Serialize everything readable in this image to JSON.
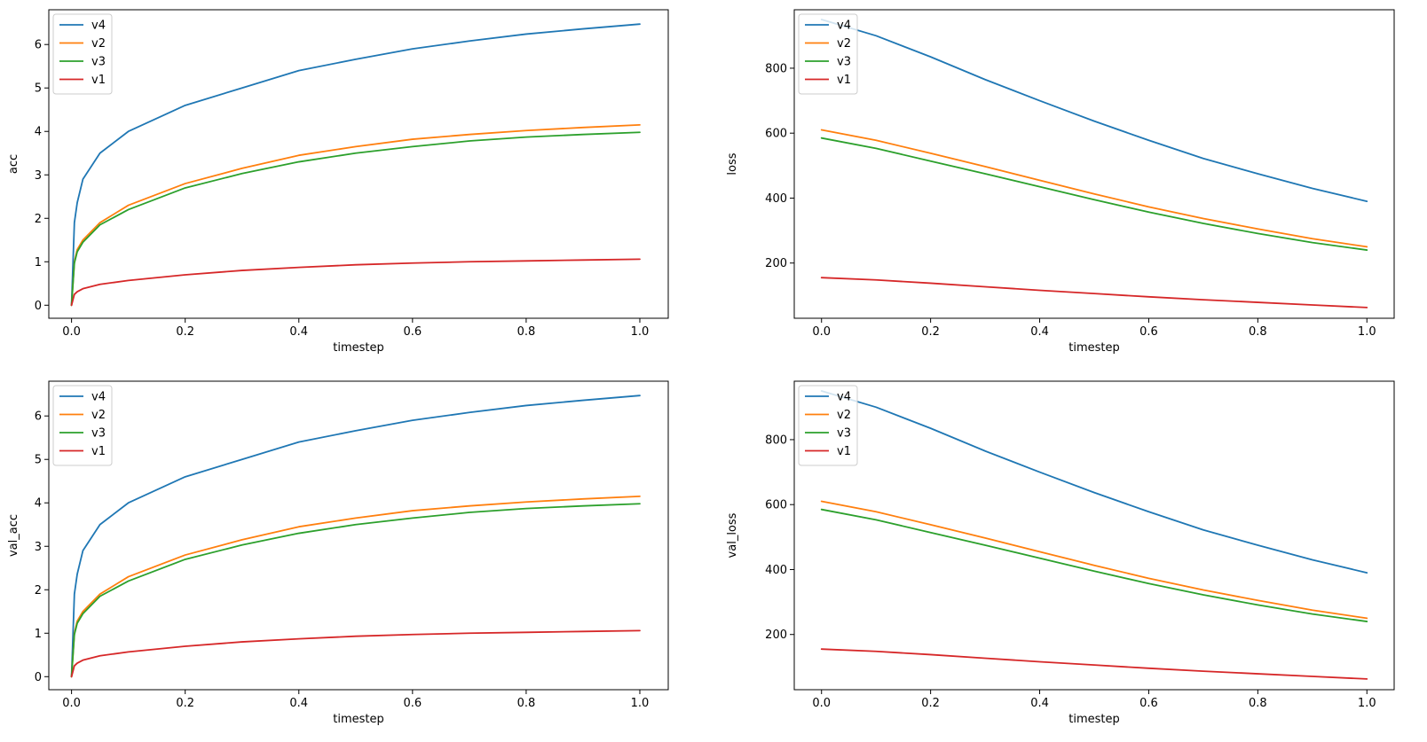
{
  "figure": {
    "background": "#ffffff"
  },
  "colors": {
    "v4": "#1f77b4",
    "v2": "#ff7f0e",
    "v3": "#2ca02c",
    "v1": "#d62728"
  },
  "chart_data": [
    {
      "type": "line",
      "title": "",
      "xlabel": "timestep",
      "ylabel": "acc",
      "xlim": [
        -0.04,
        1.05
      ],
      "ylim": [
        -0.3,
        6.8
      ],
      "xticks": [
        0.0,
        0.2,
        0.4,
        0.6,
        0.8,
        1.0
      ],
      "xtick_labels": [
        "0.0",
        "0.2",
        "0.4",
        "0.6",
        "0.8",
        "1.0"
      ],
      "yticks": [
        0,
        1,
        2,
        3,
        4,
        5,
        6
      ],
      "ytick_labels": [
        "0",
        "1",
        "2",
        "3",
        "4",
        "5",
        "6"
      ],
      "grid": false,
      "legend_position": "upper-left",
      "series": [
        {
          "name": "v4",
          "x": [
            0.0,
            0.005,
            0.01,
            0.02,
            0.05,
            0.1,
            0.2,
            0.3,
            0.4,
            0.5,
            0.6,
            0.7,
            0.8,
            0.9,
            1.0
          ],
          "y": [
            0.0,
            1.9,
            2.36,
            2.9,
            3.5,
            4.0,
            4.6,
            5.0,
            5.4,
            5.66,
            5.9,
            6.08,
            6.24,
            6.36,
            6.47
          ]
        },
        {
          "name": "v2",
          "x": [
            0.0,
            0.005,
            0.01,
            0.02,
            0.05,
            0.1,
            0.2,
            0.3,
            0.4,
            0.5,
            0.6,
            0.7,
            0.8,
            0.9,
            1.0
          ],
          "y": [
            0.0,
            1.0,
            1.28,
            1.5,
            1.9,
            2.3,
            2.8,
            3.15,
            3.45,
            3.65,
            3.82,
            3.93,
            4.02,
            4.09,
            4.15
          ]
        },
        {
          "name": "v3",
          "x": [
            0.0,
            0.005,
            0.01,
            0.02,
            0.05,
            0.1,
            0.2,
            0.3,
            0.4,
            0.5,
            0.6,
            0.7,
            0.8,
            0.9,
            1.0
          ],
          "y": [
            0.0,
            0.97,
            1.23,
            1.45,
            1.85,
            2.2,
            2.7,
            3.03,
            3.3,
            3.5,
            3.65,
            3.78,
            3.87,
            3.93,
            3.98
          ]
        },
        {
          "name": "v1",
          "x": [
            0.0,
            0.005,
            0.01,
            0.02,
            0.05,
            0.1,
            0.2,
            0.3,
            0.4,
            0.5,
            0.6,
            0.7,
            0.8,
            0.9,
            1.0
          ],
          "y": [
            0.0,
            0.25,
            0.31,
            0.38,
            0.48,
            0.57,
            0.7,
            0.8,
            0.87,
            0.93,
            0.97,
            1.0,
            1.02,
            1.04,
            1.06
          ]
        }
      ]
    },
    {
      "type": "line",
      "title": "",
      "xlabel": "timestep",
      "ylabel": "loss",
      "xlim": [
        -0.05,
        1.05
      ],
      "ylim": [
        30,
        980
      ],
      "xticks": [
        0.0,
        0.2,
        0.4,
        0.6,
        0.8,
        1.0
      ],
      "xtick_labels": [
        "0.0",
        "0.2",
        "0.4",
        "0.6",
        "0.8",
        "1.0"
      ],
      "yticks": [
        200,
        400,
        600,
        800
      ],
      "ytick_labels": [
        "200",
        "400",
        "600",
        "800"
      ],
      "grid": false,
      "legend_position": "upper-left",
      "series": [
        {
          "name": "v4",
          "x": [
            0.0,
            0.1,
            0.2,
            0.3,
            0.4,
            0.5,
            0.6,
            0.7,
            0.8,
            0.9,
            1.0
          ],
          "y": [
            950,
            900,
            835,
            765,
            700,
            637,
            578,
            522,
            475,
            430,
            390
          ]
        },
        {
          "name": "v2",
          "x": [
            0.0,
            0.1,
            0.2,
            0.3,
            0.4,
            0.5,
            0.6,
            0.7,
            0.8,
            0.9,
            1.0
          ],
          "y": [
            610,
            578,
            538,
            497,
            455,
            413,
            373,
            337,
            305,
            275,
            250
          ]
        },
        {
          "name": "v3",
          "x": [
            0.0,
            0.1,
            0.2,
            0.3,
            0.4,
            0.5,
            0.6,
            0.7,
            0.8,
            0.9,
            1.0
          ],
          "y": [
            585,
            553,
            514,
            475,
            435,
            395,
            357,
            322,
            291,
            263,
            240
          ]
        },
        {
          "name": "v1",
          "x": [
            0.0,
            0.1,
            0.2,
            0.3,
            0.4,
            0.5,
            0.6,
            0.7,
            0.8,
            0.9,
            1.0
          ],
          "y": [
            155,
            148,
            138,
            127,
            116,
            106,
            96,
            87,
            79,
            71,
            63
          ]
        }
      ]
    },
    {
      "type": "line",
      "title": "",
      "xlabel": "timestep",
      "ylabel": "val_acc",
      "xlim": [
        -0.04,
        1.05
      ],
      "ylim": [
        -0.3,
        6.8
      ],
      "xticks": [
        0.0,
        0.2,
        0.4,
        0.6,
        0.8,
        1.0
      ],
      "xtick_labels": [
        "0.0",
        "0.2",
        "0.4",
        "0.6",
        "0.8",
        "1.0"
      ],
      "yticks": [
        0,
        1,
        2,
        3,
        4,
        5,
        6
      ],
      "ytick_labels": [
        "0",
        "1",
        "2",
        "3",
        "4",
        "5",
        "6"
      ],
      "grid": false,
      "legend_position": "upper-left",
      "series": [
        {
          "name": "v4",
          "x": [
            0.0,
            0.005,
            0.01,
            0.02,
            0.05,
            0.1,
            0.2,
            0.3,
            0.4,
            0.5,
            0.6,
            0.7,
            0.8,
            0.9,
            1.0
          ],
          "y": [
            0.0,
            1.9,
            2.36,
            2.9,
            3.5,
            4.0,
            4.6,
            5.0,
            5.4,
            5.66,
            5.9,
            6.08,
            6.24,
            6.36,
            6.47
          ]
        },
        {
          "name": "v2",
          "x": [
            0.0,
            0.005,
            0.01,
            0.02,
            0.05,
            0.1,
            0.2,
            0.3,
            0.4,
            0.5,
            0.6,
            0.7,
            0.8,
            0.9,
            1.0
          ],
          "y": [
            0.0,
            1.0,
            1.28,
            1.5,
            1.9,
            2.3,
            2.8,
            3.15,
            3.45,
            3.65,
            3.82,
            3.93,
            4.02,
            4.09,
            4.15
          ]
        },
        {
          "name": "v3",
          "x": [
            0.0,
            0.005,
            0.01,
            0.02,
            0.05,
            0.1,
            0.2,
            0.3,
            0.4,
            0.5,
            0.6,
            0.7,
            0.8,
            0.9,
            1.0
          ],
          "y": [
            0.0,
            0.97,
            1.23,
            1.45,
            1.85,
            2.2,
            2.7,
            3.03,
            3.3,
            3.5,
            3.65,
            3.78,
            3.87,
            3.93,
            3.98
          ]
        },
        {
          "name": "v1",
          "x": [
            0.0,
            0.005,
            0.01,
            0.02,
            0.05,
            0.1,
            0.2,
            0.3,
            0.4,
            0.5,
            0.6,
            0.7,
            0.8,
            0.9,
            1.0
          ],
          "y": [
            0.0,
            0.25,
            0.31,
            0.38,
            0.48,
            0.57,
            0.7,
            0.8,
            0.87,
            0.93,
            0.97,
            1.0,
            1.02,
            1.04,
            1.06
          ]
        }
      ]
    },
    {
      "type": "line",
      "title": "",
      "xlabel": "timestep",
      "ylabel": "val_loss",
      "xlim": [
        -0.05,
        1.05
      ],
      "ylim": [
        30,
        980
      ],
      "xticks": [
        0.0,
        0.2,
        0.4,
        0.6,
        0.8,
        1.0
      ],
      "xtick_labels": [
        "0.0",
        "0.2",
        "0.4",
        "0.6",
        "0.8",
        "1.0"
      ],
      "yticks": [
        200,
        400,
        600,
        800
      ],
      "ytick_labels": [
        "200",
        "400",
        "600",
        "800"
      ],
      "grid": false,
      "legend_position": "upper-left",
      "series": [
        {
          "name": "v4",
          "x": [
            0.0,
            0.1,
            0.2,
            0.3,
            0.4,
            0.5,
            0.6,
            0.7,
            0.8,
            0.9,
            1.0
          ],
          "y": [
            950,
            900,
            835,
            765,
            700,
            637,
            578,
            522,
            475,
            430,
            390
          ]
        },
        {
          "name": "v2",
          "x": [
            0.0,
            0.1,
            0.2,
            0.3,
            0.4,
            0.5,
            0.6,
            0.7,
            0.8,
            0.9,
            1.0
          ],
          "y": [
            610,
            578,
            538,
            497,
            455,
            413,
            373,
            337,
            305,
            275,
            250
          ]
        },
        {
          "name": "v3",
          "x": [
            0.0,
            0.1,
            0.2,
            0.3,
            0.4,
            0.5,
            0.6,
            0.7,
            0.8,
            0.9,
            1.0
          ],
          "y": [
            585,
            553,
            514,
            475,
            435,
            395,
            357,
            322,
            291,
            263,
            240
          ]
        },
        {
          "name": "v1",
          "x": [
            0.0,
            0.1,
            0.2,
            0.3,
            0.4,
            0.5,
            0.6,
            0.7,
            0.8,
            0.9,
            1.0
          ],
          "y": [
            155,
            148,
            138,
            127,
            116,
            106,
            96,
            87,
            79,
            71,
            63
          ]
        }
      ]
    }
  ]
}
